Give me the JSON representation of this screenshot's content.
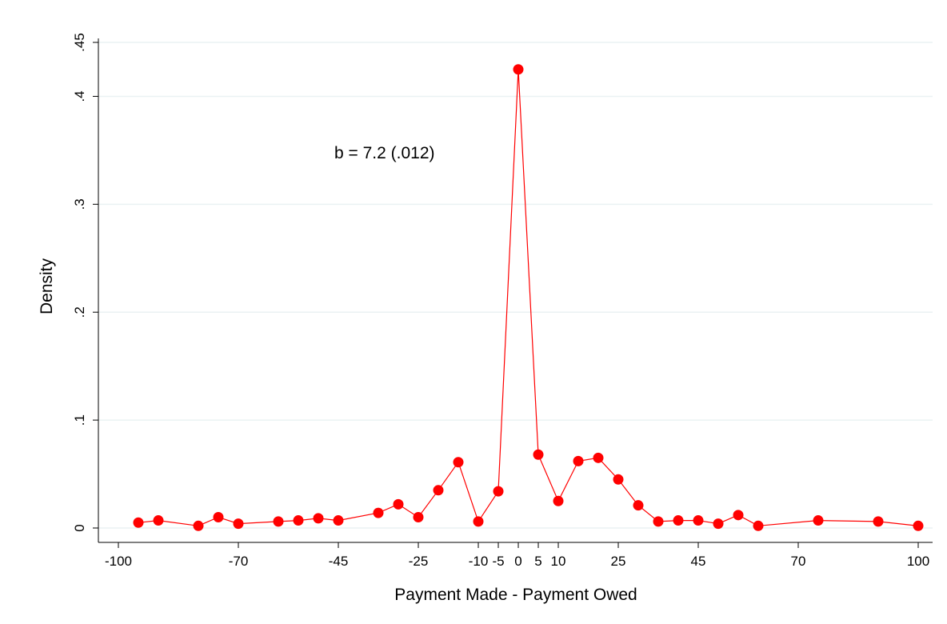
{
  "chart_data": {
    "type": "line",
    "xlabel": "Payment Made - Payment Owed",
    "ylabel": "Density",
    "annotation": "b = 7.2 (.012)",
    "xlim": [
      -100,
      100
    ],
    "ylim": [
      0,
      0.45
    ],
    "xticks": [
      -100,
      -70,
      -45,
      -25,
      -10,
      -5,
      0,
      5,
      10,
      25,
      45,
      70,
      100
    ],
    "xtick_labels": [
      "-100",
      "-70",
      "-45",
      "-25",
      "-10",
      "-5",
      "0",
      "5",
      "10",
      "25",
      "45",
      "70",
      "100"
    ],
    "yticks": [
      0,
      0.1,
      0.2,
      0.3,
      0.4,
      0.45
    ],
    "ytick_labels": [
      "0",
      ".1",
      ".2",
      ".3",
      ".4",
      ".45"
    ],
    "grid": "horizontal",
    "series": [
      {
        "color": "#ff0000",
        "marker": "filled-circle",
        "x": [
          -95,
          -90,
          -80,
          -75,
          -70,
          -60,
          -55,
          -50,
          -45,
          -35,
          -30,
          -25,
          -20,
          -15,
          -10,
          -5,
          0,
          5,
          10,
          15,
          20,
          25,
          30,
          35,
          40,
          45,
          50,
          55,
          60,
          75,
          90,
          100
        ],
        "y": [
          0.005,
          0.007,
          0.002,
          0.01,
          0.004,
          0.006,
          0.007,
          0.009,
          0.007,
          0.014,
          0.022,
          0.01,
          0.035,
          0.061,
          0.006,
          0.034,
          0.425,
          0.068,
          0.025,
          0.062,
          0.065,
          0.045,
          0.021,
          0.006,
          0.007,
          0.007,
          0.004,
          0.012,
          0.002,
          0.007,
          0.006,
          0.002
        ]
      }
    ]
  }
}
